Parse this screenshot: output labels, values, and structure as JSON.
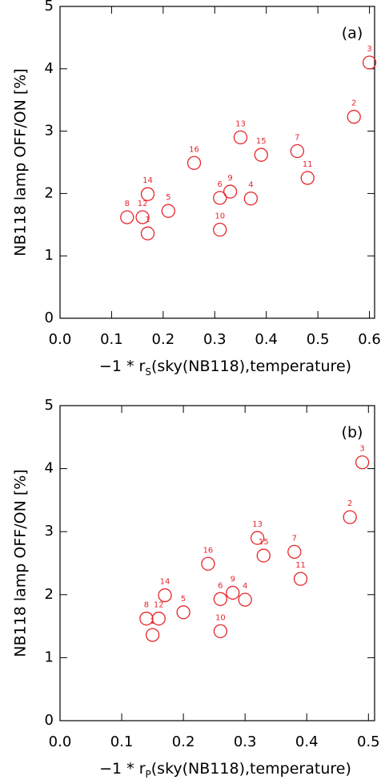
{
  "chart_data": [
    {
      "type": "scatter",
      "annotation": "(a)",
      "color": "#e8262b",
      "x_label_parts": [
        "−1 * r",
        "S",
        "(sky(NB118),temperature)"
      ],
      "y_label": "NB118 lamp OFF/ON [%]",
      "xlim": [
        0,
        0.61
      ],
      "ylim": [
        0,
        5
      ],
      "xticks": [
        {
          "value": 0,
          "label": "0.0"
        },
        0.1,
        0.2,
        0.3,
        0.4,
        0.5,
        0.6
      ],
      "yticks": [
        0,
        1,
        2,
        3,
        4,
        5
      ],
      "point_labels": [
        "8",
        "12",
        "1",
        "14",
        "5",
        "16",
        "10",
        "6",
        "9",
        "4",
        "13",
        "15",
        "7",
        "11",
        "2",
        "3"
      ],
      "x": [
        0.13,
        0.16,
        0.17,
        0.17,
        0.21,
        0.26,
        0.31,
        0.31,
        0.33,
        0.37,
        0.35,
        0.39,
        0.46,
        0.48,
        0.57,
        0.6
      ],
      "values": [
        1.62,
        1.62,
        1.36,
        1.99,
        1.72,
        2.49,
        1.42,
        1.93,
        2.03,
        1.92,
        2.9,
        2.62,
        2.68,
        2.25,
        3.23,
        4.1
      ]
    },
    {
      "type": "scatter",
      "annotation": "(b)",
      "color": "#e8262b",
      "x_label_parts": [
        "−1 * r",
        "P",
        "(sky(NB118),temperature)"
      ],
      "y_label": "NB118 lamp OFF/ON [%]",
      "xlim": [
        0,
        0.51
      ],
      "ylim": [
        0,
        5
      ],
      "xticks": [
        {
          "value": 0,
          "label": "0.0"
        },
        0.1,
        0.2,
        0.3,
        0.4,
        0.5
      ],
      "yticks": [
        0,
        1,
        2,
        3,
        4,
        5
      ],
      "point_labels": [
        "8",
        "12",
        "1",
        "14",
        "5",
        "16",
        "10",
        "6",
        "9",
        "4",
        "13",
        "15",
        "7",
        "11",
        "2",
        "3"
      ],
      "x": [
        0.14,
        0.16,
        0.15,
        0.17,
        0.2,
        0.24,
        0.26,
        0.26,
        0.28,
        0.3,
        0.32,
        0.33,
        0.38,
        0.39,
        0.47,
        0.49
      ],
      "values": [
        1.62,
        1.62,
        1.36,
        1.99,
        1.72,
        2.49,
        1.42,
        1.93,
        2.03,
        1.92,
        2.9,
        2.62,
        2.68,
        2.25,
        3.23,
        4.1
      ]
    }
  ]
}
